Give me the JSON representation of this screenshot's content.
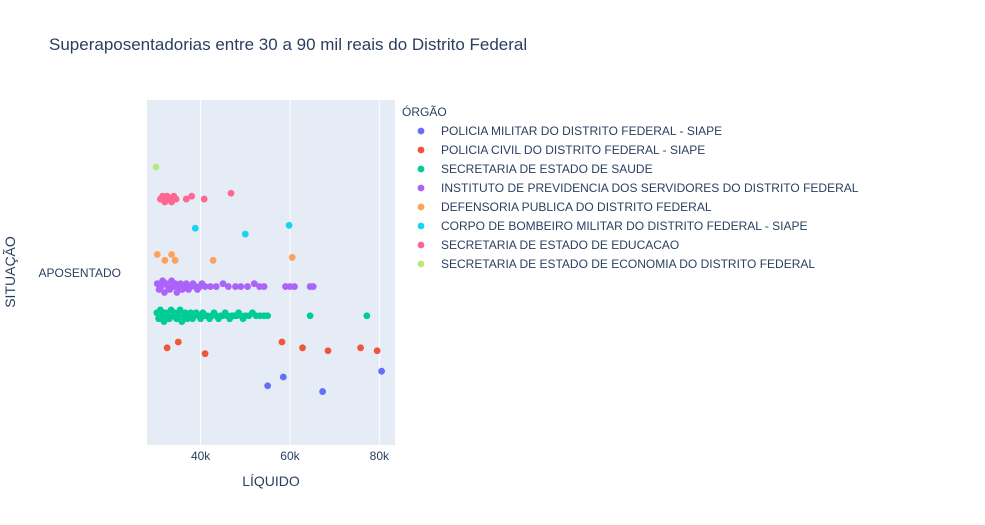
{
  "chart_data": {
    "type": "scatter",
    "title": "Superaposentadorias entre 30 a 90 mil reais do Distrito Federal",
    "xlabel": "LÍQUIDO",
    "ylabel": "SITUAÇÃO",
    "y_category": "APOSENTADO",
    "xlim": [
      28000,
      83500
    ],
    "x_ticks": [
      {
        "value": 40000,
        "label": "40k"
      },
      {
        "value": 60000,
        "label": "60k"
      },
      {
        "value": 80000,
        "label": "80k"
      }
    ],
    "grid": true,
    "plot_background": "#e5ecf6",
    "legend_title": "ÓRGÃO",
    "legend_position": "top-right",
    "series": [
      {
        "name": "POLICIA MILITAR DO DISTRITO FEDERAL - SIAPE",
        "color": "#636efa",
        "offset": -0.36,
        "x": [
          55000,
          58500,
          67300,
          80500
        ],
        "jitter": [
          -0.03,
          0.0,
          -0.05,
          0.02
        ]
      },
      {
        "name": "POLICIA CIVIL DO DISTRITO FEDERAL - SIAPE",
        "color": "#ef553b",
        "offset": -0.26,
        "x": [
          32500,
          35000,
          41000,
          58200,
          62800,
          68500,
          75800,
          79500
        ],
        "jitter": [
          0.0,
          0.02,
          -0.02,
          0.02,
          0.0,
          -0.01,
          0.0,
          -0.01
        ]
      },
      {
        "name": "SECRETARIA DE ESTADO DE SAUDE",
        "color": "#00cc96",
        "offset": -0.15,
        "x": [
          30200,
          30600,
          31000,
          31400,
          31800,
          32200,
          32600,
          33000,
          33400,
          33800,
          34200,
          34600,
          35000,
          35400,
          35800,
          36200,
          36600,
          37000,
          37400,
          37800,
          38200,
          38600,
          39000,
          39500,
          40000,
          40500,
          41000,
          41500,
          42000,
          42500,
          43000,
          43500,
          44000,
          44500,
          45000,
          45500,
          46000,
          46500,
          47000,
          47500,
          48000,
          48500,
          49000,
          49500,
          50000,
          50800,
          51600,
          52400,
          53300,
          54200,
          55000,
          64500,
          77200
        ],
        "jitter": [
          0.01,
          -0.01,
          0.02,
          0.0,
          -0.02,
          0.01,
          0.0,
          -0.01,
          0.02,
          0.0,
          0.01,
          -0.01,
          0.0,
          0.02,
          -0.02,
          0.0,
          0.01,
          -0.01,
          0.0,
          0.01,
          -0.01,
          0.0,
          0.01,
          0.0,
          -0.01,
          0.01,
          0.0,
          0.0,
          -0.01,
          0.0,
          0.01,
          0.0,
          -0.01,
          0.0,
          0.0,
          0.01,
          0.0,
          -0.01,
          0.0,
          0.0,
          0.0,
          0.01,
          0.0,
          -0.01,
          0.0,
          0.0,
          0.01,
          0.0,
          0.0,
          0.0,
          0.0,
          0.0,
          0.0
        ]
      },
      {
        "name": "INSTITUTO DE PREVIDENCIA DOS SERVIDORES DO DISTRITO FEDERAL",
        "color": "#ab63fa",
        "offset": -0.05,
        "x": [
          30300,
          30700,
          31100,
          31500,
          31900,
          32300,
          32700,
          33100,
          33500,
          33900,
          34300,
          34700,
          35100,
          35500,
          35900,
          36300,
          36800,
          37300,
          37800,
          38300,
          38800,
          39300,
          39800,
          40300,
          41000,
          42200,
          43500,
          45000,
          46200,
          47800,
          49000,
          50500,
          52000,
          53200,
          54200,
          59000,
          60000,
          61000,
          64500,
          65200
        ],
        "jitter": [
          0.01,
          -0.01,
          0.0,
          0.02,
          -0.02,
          0.01,
          0.0,
          -0.01,
          0.02,
          0.0,
          0.01,
          -0.02,
          0.0,
          0.01,
          -0.01,
          0.0,
          0.01,
          -0.01,
          0.0,
          0.01,
          0.0,
          -0.01,
          0.0,
          0.01,
          0.0,
          0.0,
          0.0,
          0.01,
          0.0,
          0.0,
          0.0,
          0.0,
          0.01,
          0.0,
          0.0,
          0.0,
          0.0,
          0.0,
          0.0,
          0.0
        ]
      },
      {
        "name": "DEFENSORIA PUBLICA DO DISTRITO FEDERAL",
        "color": "#ffa15a",
        "offset": 0.05,
        "x": [
          30300,
          32000,
          33500,
          34300,
          42800,
          60500
        ],
        "jitter": [
          0.01,
          -0.01,
          0.01,
          -0.01,
          -0.01,
          0.0
        ]
      },
      {
        "name": "CORPO DE BOMBEIRO MILITAR DO DISTRITO FEDERAL - SIAPE",
        "color": "#19d3f3",
        "offset": 0.15,
        "x": [
          38800,
          50000,
          59800
        ],
        "jitter": [
          0.0,
          -0.02,
          0.01
        ]
      },
      {
        "name": "SECRETARIA DE ESTADO DE EDUCACAO",
        "color": "#ff6692",
        "offset": 0.25,
        "x": [
          31000,
          31500,
          32000,
          32500,
          33000,
          33500,
          34000,
          34500,
          36800,
          38000,
          40800,
          46800
        ],
        "jitter": [
          0.0,
          0.01,
          -0.01,
          0.01,
          0.0,
          -0.01,
          0.01,
          0.0,
          0.0,
          0.01,
          0.0,
          0.02
        ]
      },
      {
        "name": "SECRETARIA DE ESTADO DE ECONOMIA DO DISTRITO FEDERAL",
        "color": "#b6e880",
        "offset": 0.36,
        "x": [
          30000
        ],
        "jitter": [
          0.0
        ]
      }
    ]
  }
}
